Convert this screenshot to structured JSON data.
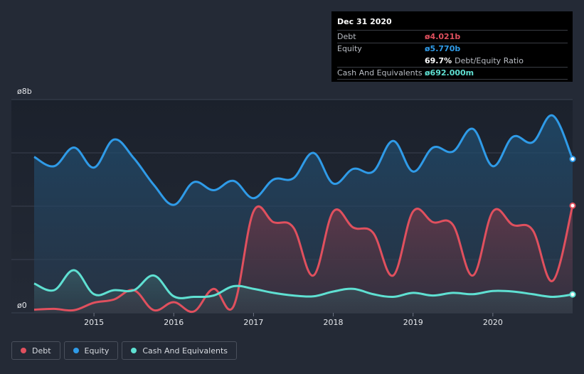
{
  "tooltip": {
    "date": "Dec 31 2020",
    "debt_label": "Debt",
    "debt_value": "ø4.021b",
    "equity_label": "Equity",
    "equity_value": "ø5.770b",
    "ratio_value": "69.7%",
    "ratio_label": "Debt/Equity Ratio",
    "cash_label": "Cash And Equivalents",
    "cash_value": "ø692.000m"
  },
  "colors": {
    "debt": "#e0505e",
    "equity": "#2f9be8",
    "cash": "#5fe0d2"
  },
  "chart_data": {
    "type": "area",
    "y_top_label": "ø8b",
    "y_bottom_label": "ø0",
    "ylim": [
      0,
      8
    ],
    "xlim": [
      2014.25,
      2021.0
    ],
    "x_ticks": [
      2015,
      2016,
      2017,
      2018,
      2019,
      2020
    ],
    "x_tick_labels": [
      "2015",
      "2016",
      "2017",
      "2018",
      "2019",
      "2020"
    ],
    "series": [
      {
        "name": "Debt",
        "x": [
          2014.25,
          2014.5,
          2014.75,
          2015.0,
          2015.25,
          2015.5,
          2015.75,
          2016.0,
          2016.25,
          2016.5,
          2016.75,
          2017.0,
          2017.25,
          2017.5,
          2017.75,
          2018.0,
          2018.25,
          2018.5,
          2018.75,
          2019.0,
          2019.25,
          2019.5,
          2019.75,
          2020.0,
          2020.25,
          2020.5,
          2020.75,
          2021.0
        ],
        "values": [
          0.12,
          0.15,
          0.1,
          0.38,
          0.5,
          0.85,
          0.1,
          0.4,
          0.05,
          0.9,
          0.25,
          3.8,
          3.4,
          3.2,
          1.4,
          3.8,
          3.2,
          3.0,
          1.4,
          3.8,
          3.4,
          3.3,
          1.4,
          3.8,
          3.3,
          3.1,
          1.2,
          4.02
        ]
      },
      {
        "name": "Equity",
        "x": [
          2014.25,
          2014.5,
          2014.75,
          2015.0,
          2015.25,
          2015.5,
          2015.75,
          2016.0,
          2016.25,
          2016.5,
          2016.75,
          2017.0,
          2017.25,
          2017.5,
          2017.75,
          2018.0,
          2018.25,
          2018.5,
          2018.75,
          2019.0,
          2019.25,
          2019.5,
          2019.75,
          2020.0,
          2020.25,
          2020.5,
          2020.75,
          2021.0
        ],
        "values": [
          5.85,
          5.5,
          6.2,
          5.45,
          6.5,
          5.8,
          4.8,
          4.05,
          4.9,
          4.6,
          4.95,
          4.3,
          5.0,
          5.05,
          6.0,
          4.85,
          5.4,
          5.3,
          6.45,
          5.3,
          6.2,
          6.05,
          6.9,
          5.5,
          6.6,
          6.4,
          7.4,
          5.77
        ]
      },
      {
        "name": "Cash And Equivalents",
        "x": [
          2014.25,
          2014.5,
          2014.75,
          2015.0,
          2015.25,
          2015.5,
          2015.75,
          2016.0,
          2016.25,
          2016.5,
          2016.75,
          2017.0,
          2017.25,
          2017.5,
          2017.75,
          2018.0,
          2018.25,
          2018.5,
          2018.75,
          2019.0,
          2019.25,
          2019.5,
          2019.75,
          2020.0,
          2020.25,
          2020.5,
          2020.75,
          2021.0
        ],
        "values": [
          1.1,
          0.85,
          1.6,
          0.7,
          0.85,
          0.85,
          1.4,
          0.62,
          0.6,
          0.65,
          1.0,
          0.9,
          0.75,
          0.65,
          0.62,
          0.8,
          0.9,
          0.7,
          0.6,
          0.75,
          0.65,
          0.75,
          0.7,
          0.82,
          0.8,
          0.7,
          0.6,
          0.69
        ]
      }
    ]
  },
  "legend": [
    {
      "key": "debt",
      "label": "Debt"
    },
    {
      "key": "equity",
      "label": "Equity"
    },
    {
      "key": "cash",
      "label": "Cash And Equivalents"
    }
  ]
}
